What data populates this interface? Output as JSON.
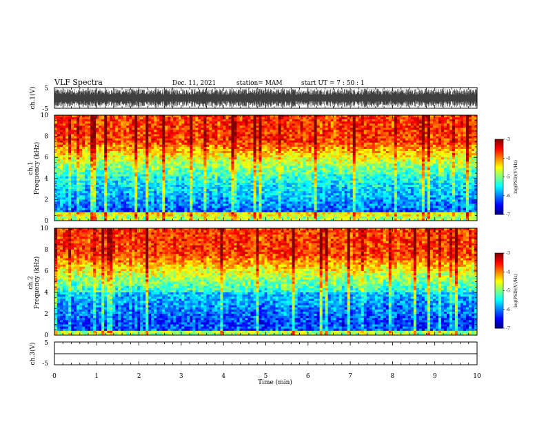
{
  "header": {
    "title": "VLF Spectra",
    "date": "Dec. 11, 2021",
    "station": "station= MAM",
    "start_ut": "start  UT =   7 : 50 : 1"
  },
  "chart_data": [
    {
      "type": "line",
      "panel": "ch1-waveform",
      "ylabel": "ch.1(V)",
      "yticks": [
        "5",
        "-5"
      ],
      "ylim": [
        -5,
        5
      ],
      "color": "#000000"
    },
    {
      "type": "heatmap",
      "panel": "ch1-spectrogram",
      "ylabel_line1": "ch.1",
      "ylabel_line2": "Frequency  (kHz)",
      "yticks": [
        "0",
        "2",
        "4",
        "6",
        "8",
        "10"
      ],
      "ylim": [
        0,
        10
      ],
      "colorbar": {
        "label": "log(PSD)(V²/Hz)",
        "ticks": [
          "-3",
          "-4",
          "-5",
          "-6",
          "-7"
        ],
        "range": [
          -7,
          -3
        ]
      }
    },
    {
      "type": "heatmap",
      "panel": "ch2-spectrogram",
      "ylabel_line1": "ch.2",
      "ylabel_line2": "Frequency  (kHz)",
      "yticks": [
        "0",
        "2",
        "4",
        "6",
        "8",
        "10"
      ],
      "ylim": [
        0,
        10
      ],
      "colorbar": {
        "label": "log(PSD)(V²/Hz)",
        "ticks": [
          "-3",
          "-4",
          "-5",
          "-6",
          "-7"
        ],
        "range": [
          -7,
          -3
        ]
      }
    },
    {
      "type": "line",
      "panel": "ch3-waveform",
      "ylabel": "ch.3(V)",
      "yticks": [
        "5",
        "-5"
      ],
      "ylim": [
        -5,
        5
      ],
      "color": "#000000"
    }
  ],
  "xaxis": {
    "label": "Time  (min)",
    "ticks": [
      "0",
      "1",
      "2",
      "3",
      "4",
      "5",
      "6",
      "7",
      "8",
      "9",
      "10"
    ],
    "xlim": [
      0,
      10
    ]
  }
}
